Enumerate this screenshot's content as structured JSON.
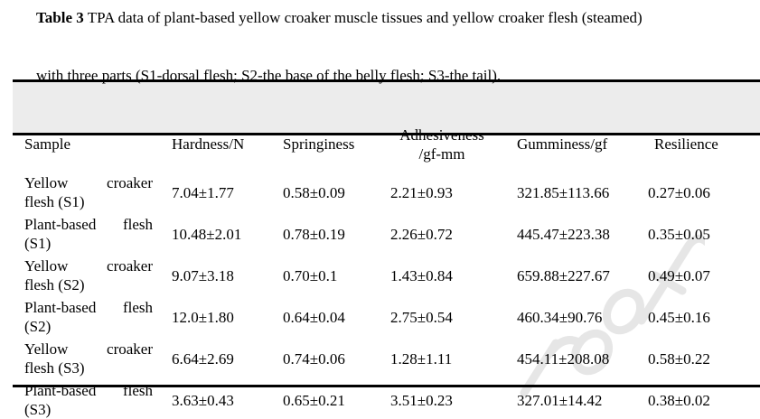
{
  "caption": {
    "label": "Table 3",
    "line1": " TPA data of plant-based yellow croaker muscle tissues and yellow croaker flesh (steamed)",
    "line2": "with three parts (S1-dorsal flesh; S2-the base of the belly flesh; S3-the tail)."
  },
  "table": {
    "headers": [
      "Sample",
      "Hardness/N",
      "Springiness",
      "Adhesiveness /gf-mm",
      "Gumminess/gf",
      "Resilience"
    ],
    "header_adhesiveness_lines": [
      "Adhesiveness",
      "/gf-mm"
    ],
    "rows": [
      {
        "sample": [
          "Yellow croaker",
          "flesh (S1)"
        ],
        "values": [
          "7.04±1.77",
          "0.58±0.09",
          "2.21±0.93",
          "321.85±113.66",
          "0.27±0.06"
        ]
      },
      {
        "sample": [
          "Plant-based flesh",
          "(S1)"
        ],
        "values": [
          "10.48±2.01",
          "0.78±0.19",
          "2.26±0.72",
          "445.47±223.38",
          "0.35±0.05"
        ]
      },
      {
        "sample": [
          "Yellow croaker",
          "flesh (S2)"
        ],
        "values": [
          "9.07±3.18",
          "0.70±0.1",
          "1.43±0.84",
          "659.88±227.67",
          "0.49±0.07"
        ]
      },
      {
        "sample": [
          "Plant-based flesh",
          "(S2)"
        ],
        "values": [
          "12.0±1.80",
          "0.64±0.04",
          "2.75±0.54",
          "460.34±90.76",
          "0.45±0.16"
        ]
      },
      {
        "sample": [
          "Yellow croaker",
          "flesh (S3)"
        ],
        "values": [
          "6.64±2.69",
          "0.74±0.06",
          "1.28±1.11",
          "454.11±208.08",
          "0.58±0.22"
        ]
      },
      {
        "sample": [
          "Plant-based flesh",
          "(S3)"
        ],
        "values": [
          "3.63±0.43",
          "0.65±0.21",
          "3.51±0.23",
          "327.01±14.42",
          "0.38±0.02"
        ]
      }
    ]
  },
  "watermark": "roof",
  "colors": {
    "header_bg": "#ececec",
    "watermark": "#e6e6e6"
  }
}
